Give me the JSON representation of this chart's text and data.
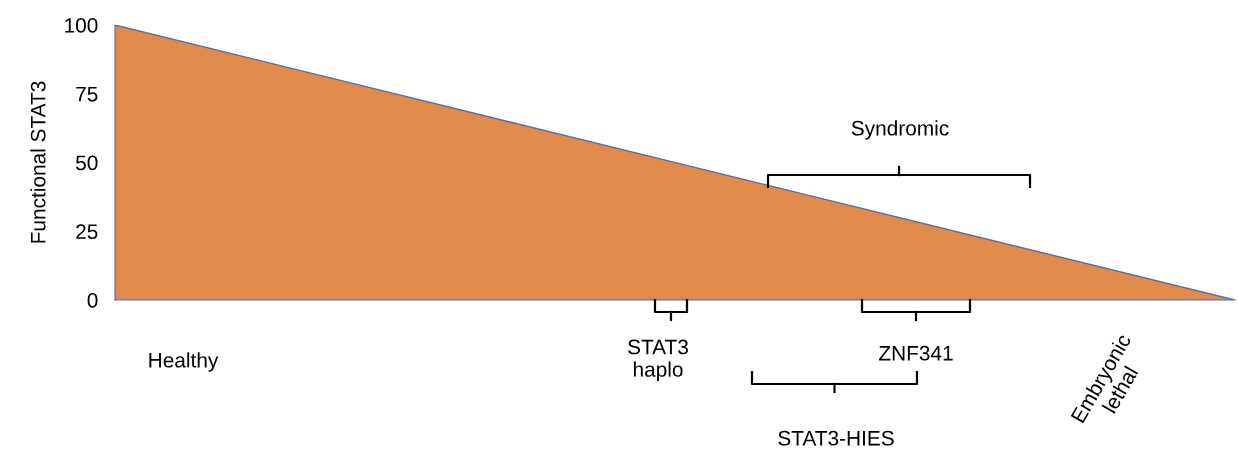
{
  "chart_data": {
    "type": "area",
    "ylabel": "Functional STAT3",
    "categories": [
      null,
      null
    ],
    "series": [
      {
        "color": "#e08a4c",
        "values": [
          100,
          0
        ]
      }
    ],
    "ylim": [
      0,
      100
    ],
    "yticks": [
      0,
      25,
      50,
      75,
      100
    ],
    "tick_labels": "y",
    "grid": false,
    "legend": false,
    "annotations": [
      "Syndromic",
      "STAT3\nhaplo",
      "ZNF341",
      "STAT3-HIES",
      "Healthy",
      "Embryonic\nlethal"
    ]
  }
}
